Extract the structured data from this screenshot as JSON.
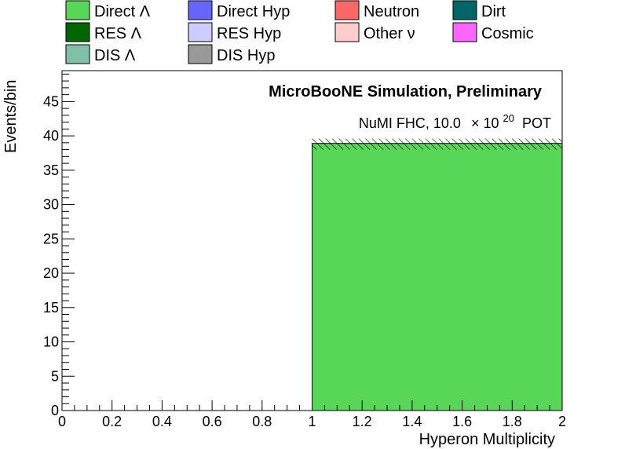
{
  "chart_data": {
    "type": "bar",
    "xlabel": "Hyperon Multiplicity",
    "ylabel": "Events/bin",
    "xlim": [
      0,
      2
    ],
    "ylim": [
      0,
      49.5
    ],
    "x_ticks": [
      "0",
      "0.2",
      "0.4",
      "0.6",
      "0.8",
      "1",
      "1.2",
      "1.4",
      "1.6",
      "1.8",
      "2"
    ],
    "y_ticks": [
      "0",
      "5",
      "10",
      "15",
      "20",
      "25",
      "30",
      "35",
      "40",
      "45"
    ],
    "bins": [
      {
        "x_low": 0,
        "x_high": 1,
        "stack": []
      },
      {
        "x_low": 1,
        "x_high": 2,
        "stack": [
          {
            "series": "Direct Λ",
            "value": 38.9
          }
        ],
        "uncertainty": [
          38.0,
          39.6
        ]
      }
    ],
    "series": [
      {
        "name": "Direct Λ",
        "color": "#57d657"
      },
      {
        "name": "Direct Hyp",
        "color": "#6666ff"
      },
      {
        "name": "Neutron",
        "color": "#ff6666"
      },
      {
        "name": "Dirt",
        "color": "#006666"
      },
      {
        "name": "RES Λ",
        "color": "#006600"
      },
      {
        "name": "RES Hyp",
        "color": "#ccccff"
      },
      {
        "name": "Other ν",
        "color": "#ffcccc"
      },
      {
        "name": "Cosmic",
        "color": "#ff66ff"
      },
      {
        "name": "DIS Λ",
        "color": "#80c0a6"
      },
      {
        "name": "DIS Hyp",
        "color": "#999999"
      }
    ],
    "annotations": {
      "simulation": "MicroBooNE Simulation, Preliminary",
      "pot_prefix": "NuMI FHC, 10.0",
      "pot_times": "× 10",
      "pot_exponent": "20",
      "pot_suffix": "POT"
    }
  }
}
